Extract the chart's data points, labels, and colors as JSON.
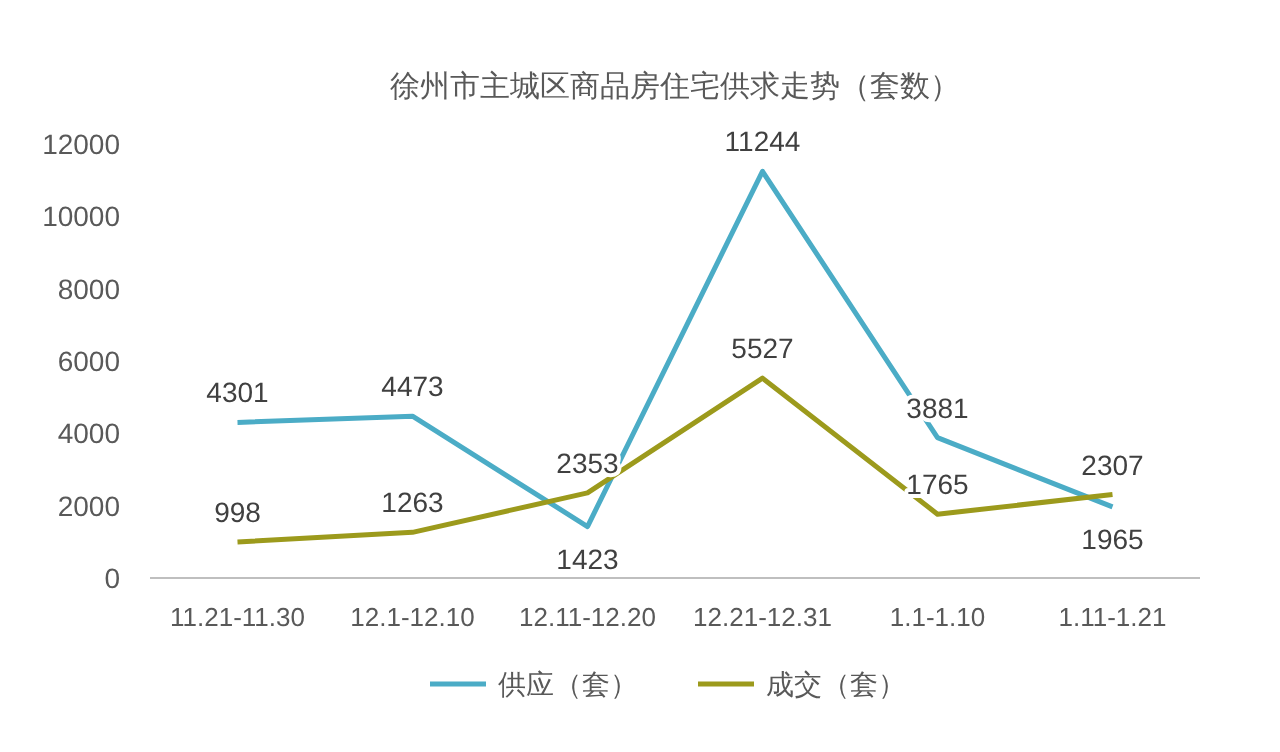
{
  "chart_data": {
    "type": "line",
    "title": "徐州市主城区商品房住宅供求走势（套数）",
    "categories": [
      "11.21-11.30",
      "12.1-12.10",
      "12.11-12.20",
      "12.21-12.31",
      "1.1-1.10",
      "1.11-1.21"
    ],
    "series": [
      {
        "name": "供应（套）",
        "color": "#4bacc6",
        "values": [
          4301,
          4473,
          1423,
          11244,
          3881,
          1965
        ]
      },
      {
        "name": "成交（套）",
        "color": "#9c9a1c",
        "values": [
          998,
          1263,
          2353,
          5527,
          1765,
          2307
        ]
      }
    ],
    "ylim": [
      0,
      12000
    ],
    "yticks": [
      0,
      2000,
      4000,
      6000,
      8000,
      10000,
      12000
    ],
    "data_labels": true,
    "legend": "bottom",
    "grid": false,
    "marker": "none",
    "line_style": "solid"
  }
}
